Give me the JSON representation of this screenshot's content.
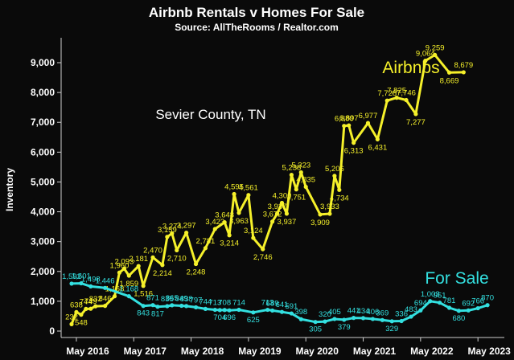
{
  "chart_data": {
    "type": "line",
    "title": "Airbnb Rentals v Homes For Sale",
    "subtitle": "Source: AllTheRooms / Realtor.com",
    "annotation": "Sevier County, TN",
    "ylabel": "Inventory",
    "xlabel": "",
    "ylim": [
      0,
      10000
    ],
    "yticks": [
      0,
      1000,
      2000,
      3000,
      4000,
      5000,
      6000,
      7000,
      8000,
      9000
    ],
    "ytick_labels": [
      "0",
      "1,000",
      "2,000",
      "3,000",
      "4,000",
      "5,000",
      "6,000",
      "7,000",
      "8,000",
      "9,000"
    ],
    "x_start": "Apr 2016",
    "x_tick_labels": [
      "May 2016",
      "May 2017",
      "May 2018",
      "May 2019",
      "May 2020",
      "May 2021",
      "May 2022",
      "May 2023"
    ],
    "x_tick_month_index": [
      1,
      13,
      25,
      37,
      49,
      61,
      73,
      85
    ],
    "grid": false,
    "colors": {
      "airbnbs": "#f5f02a",
      "for_sale": "#33e0e0",
      "background": "#0a0a0a"
    },
    "series": [
      {
        "name": "Airbnbs",
        "values": [
          232,
          638,
          548,
          744,
          749,
          832,
          846,
          1168,
          1960,
          2093,
          1859,
          2181,
          1516,
          2470,
          2214,
          3159,
          3274,
          2710,
          3297,
          2248,
          2781,
          3423,
          3648,
          3214,
          4595,
          3963,
          4561,
          3124,
          2746,
          3672,
          3937,
          4300,
          3937,
          5238,
          4751,
          5323,
          4835,
          3909,
          3933,
          5206,
          4734,
          6880,
          6897,
          6313,
          6977,
          6431,
          7728,
          7825,
          7746,
          7277,
          9064,
          9259,
          8669,
          8679
        ],
        "month_index": [
          0,
          1,
          2,
          3,
          4,
          5,
          7,
          9,
          10,
          11,
          12,
          14,
          15,
          17,
          19,
          20,
          21,
          22,
          24,
          26,
          28,
          30,
          32,
          33,
          34,
          35,
          37,
          38,
          40,
          42,
          43,
          44,
          45,
          46,
          47,
          48,
          49,
          52,
          54,
          55,
          56,
          57,
          58,
          59,
          62,
          64,
          66,
          68,
          70,
          72,
          74,
          76,
          79,
          82
        ],
        "labels": [
          "232",
          "638",
          "548",
          "744",
          "749",
          "832",
          "846",
          "1,168",
          "1,960",
          "2,093",
          "1,859",
          "2,181",
          "1,516",
          "2,470",
          "2,214",
          "3,159",
          "3,274",
          "2,710",
          "3,297",
          "2,248",
          "2,781",
          "3,423",
          "3,648",
          "3,214",
          "4,595",
          "3,963",
          "4,561",
          "3,124",
          "2,746",
          "3,672",
          "3,937",
          "4,300",
          "3,937",
          "5,238",
          "4,751",
          "5,323",
          "4,835",
          "3,909",
          "3,933",
          "5,206",
          "4,734",
          "6,880",
          "6,897",
          "6,313",
          "6,977",
          "6,431",
          "7,728",
          "7,825",
          "7,746",
          "7,277",
          "9,064",
          "9,259",
          "8,669",
          "8,679"
        ]
      },
      {
        "name": "For Sale",
        "values": [
          1592,
          1601,
          1498,
          1446,
          1168,
          843,
          871,
          817,
          835,
          865,
          849,
          838,
          797,
          744,
          713,
          704,
          708,
          696,
          714,
          625,
          713,
          689,
          641,
          591,
          398,
          305,
          320,
          405,
          379,
          441,
          434,
          406,
          369,
          329,
          336,
          483,
          694,
          1003,
          951,
          781,
          680,
          692,
          766,
          870
        ],
        "month_index": [
          0,
          2,
          4,
          7,
          12,
          15,
          17,
          18,
          20,
          21,
          23,
          24,
          26,
          28,
          30,
          31,
          32,
          33,
          35,
          38,
          41,
          42,
          44,
          46,
          48,
          51,
          53,
          55,
          57,
          59,
          61,
          63,
          65,
          67,
          69,
          71,
          73,
          75,
          77,
          79,
          81,
          83,
          85,
          87
        ],
        "labels": [
          "1,592",
          "1,601",
          "1,498",
          "1,446",
          "1,168",
          "843",
          "871",
          "817",
          "835",
          "865",
          "849",
          "838",
          "797",
          "744",
          "713",
          "704",
          "708",
          "696",
          "714",
          "625",
          "713",
          "689",
          "641",
          "591",
          "398",
          "305",
          "320",
          "405",
          "379",
          "441",
          "434",
          "406",
          "369",
          "329",
          "336",
          "483",
          "694",
          "1,003",
          "951",
          "781",
          "680",
          "692",
          "766",
          "870"
        ]
      }
    ]
  }
}
